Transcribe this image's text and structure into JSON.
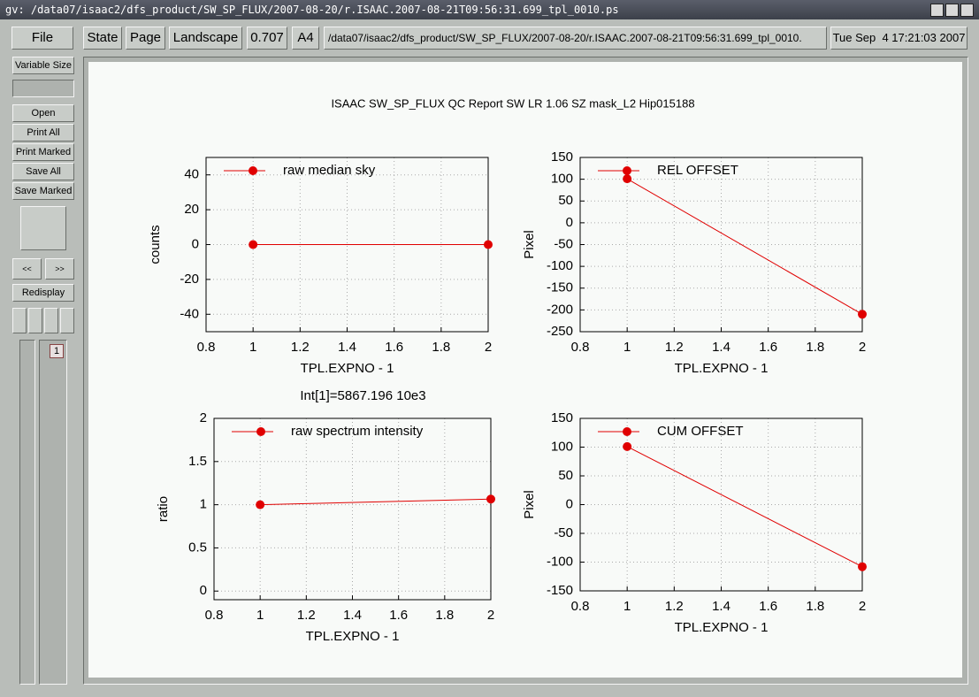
{
  "window": {
    "title": "gv: /data07/isaac2/dfs_product/SW_SP_FLUX/2007-08-20/r.ISAAC.2007-08-21T09:56:31.699_tpl_0010.ps"
  },
  "toolbar": {
    "file": "File",
    "state": "State",
    "page": "Page",
    "orientation": "Landscape",
    "scale": "0.707",
    "media": "A4",
    "filename": "/data07/isaac2/dfs_product/SW_SP_FLUX/2007-08-20/r.ISAAC.2007-08-21T09:56:31.699_tpl_0010.",
    "date": "Tue Sep  4 17:21:03 2007"
  },
  "sidebar": {
    "variable_size": "Variable Size",
    "actions": [
      "Open",
      "Print All",
      "Print Marked",
      "Save All",
      "Save Marked"
    ],
    "prev": "<<",
    "next": ">>",
    "redisplay": "Redisplay",
    "pages": [
      "1"
    ]
  },
  "document": {
    "title": "ISAAC SW_SP_FLUX QC Report  SW LR 1.06 SZ mask_L2 Hip015188"
  },
  "chart_data": [
    {
      "type": "line",
      "x": [
        1,
        2
      ],
      "series": [
        {
          "name": "raw median sky",
          "color": "#e00000",
          "values": [
            0,
            0
          ]
        }
      ],
      "xlim": [
        0.8,
        2
      ],
      "xticks": [
        0.8,
        1,
        1.2,
        1.4,
        1.6,
        1.8,
        2
      ],
      "ylim": [
        -50,
        50
      ],
      "yticks": [
        -40,
        -20,
        0,
        20,
        40
      ],
      "x_label": "TPL.EXPNO - 1",
      "y_label": "counts",
      "grid": true
    },
    {
      "type": "line",
      "x": [
        1,
        2
      ],
      "series": [
        {
          "name": "REL OFFSET",
          "color": "#e00000",
          "values": [
            101,
            -210
          ]
        }
      ],
      "xlim": [
        0.8,
        2
      ],
      "xticks": [
        0.8,
        1,
        1.2,
        1.4,
        1.6,
        1.8,
        2
      ],
      "ylim": [
        -250,
        150
      ],
      "yticks": [
        -250,
        -200,
        -150,
        -100,
        -50,
        0,
        50,
        100,
        150
      ],
      "x_label": "TPL.EXPNO - 1",
      "y_label": "Pixel",
      "grid": true
    },
    {
      "type": "line",
      "title": "Int[1]=5867.196 10e3",
      "x": [
        1,
        2
      ],
      "series": [
        {
          "name": "raw spectrum intensity",
          "color": "#e00000",
          "values": [
            1.0,
            1.065
          ]
        }
      ],
      "xlim": [
        0.8,
        2
      ],
      "xticks": [
        0.8,
        1,
        1.2,
        1.4,
        1.6,
        1.8,
        2
      ],
      "ylim": [
        -0.1,
        2
      ],
      "yticks": [
        0,
        0.5,
        1,
        1.5,
        2
      ],
      "x_label": "TPL.EXPNO - 1",
      "y_label": "ratio",
      "grid": true
    },
    {
      "type": "line",
      "x": [
        1,
        2
      ],
      "series": [
        {
          "name": "CUM OFFSET",
          "color": "#e00000",
          "values": [
            101,
            -108
          ]
        }
      ],
      "xlim": [
        0.8,
        2
      ],
      "xticks": [
        0.8,
        1,
        1.2,
        1.4,
        1.6,
        1.8,
        2
      ],
      "ylim": [
        -150,
        150
      ],
      "yticks": [
        -150,
        -100,
        -50,
        0,
        50,
        100,
        150
      ],
      "x_label": "TPL.EXPNO - 1",
      "y_label": "Pixel",
      "grid": true
    }
  ]
}
